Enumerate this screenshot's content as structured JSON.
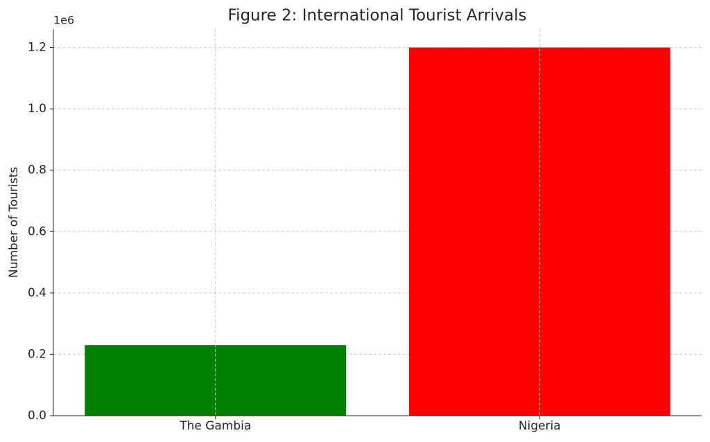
{
  "chart_data": {
    "type": "bar",
    "title": "Figure 2: International Tourist Arrivals",
    "y_label": "Number of Tourists",
    "y_offset_label": "1e6",
    "categories": [
      "The Gambia",
      "Nigeria"
    ],
    "values": [
      230000,
      1200000
    ],
    "colors": [
      "#008000",
      "#ff0000"
    ],
    "ylim": [
      0,
      1260000
    ],
    "yticks": [
      {
        "value": 0,
        "label": "0.0"
      },
      {
        "value": 200000,
        "label": "0.2"
      },
      {
        "value": 400000,
        "label": "0.4"
      },
      {
        "value": 600000,
        "label": "0.6"
      },
      {
        "value": 800000,
        "label": "0.8"
      },
      {
        "value": 1000000,
        "label": "1.0"
      },
      {
        "value": 1200000,
        "label": "1.2"
      }
    ],
    "grid": true
  }
}
